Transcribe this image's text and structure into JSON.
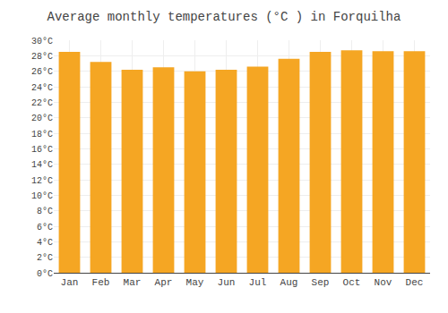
{
  "chart_data": {
    "type": "bar",
    "title": "Average monthly temperatures (°C ) in Forquilha",
    "categories": [
      "Jan",
      "Feb",
      "Mar",
      "Apr",
      "May",
      "Jun",
      "Jul",
      "Aug",
      "Sep",
      "Oct",
      "Nov",
      "Dec"
    ],
    "values": [
      28.5,
      27.2,
      26.2,
      26.5,
      26.0,
      26.2,
      26.6,
      27.6,
      28.5,
      28.7,
      28.6,
      28.6
    ],
    "color": "#F5A623",
    "ylim": [
      0,
      30
    ],
    "yticks": [
      {
        "value": 0,
        "label": "0°C"
      },
      {
        "value": 2,
        "label": "2°C"
      },
      {
        "value": 4,
        "label": "4°C"
      },
      {
        "value": 6,
        "label": "6°C"
      },
      {
        "value": 8,
        "label": "8°C"
      },
      {
        "value": 10,
        "label": "10°C"
      },
      {
        "value": 12,
        "label": "12°C"
      },
      {
        "value": 14,
        "label": "14°C"
      },
      {
        "value": 16,
        "label": "16°C"
      },
      {
        "value": 18,
        "label": "18°C"
      },
      {
        "value": 20,
        "label": "20°C"
      },
      {
        "value": 22,
        "label": "22°C"
      },
      {
        "value": 24,
        "label": "24°C"
      },
      {
        "value": 26,
        "label": "26°C"
      },
      {
        "value": 28,
        "label": "28°C"
      },
      {
        "value": 30,
        "label": "30°C"
      }
    ],
    "grid": true
  }
}
